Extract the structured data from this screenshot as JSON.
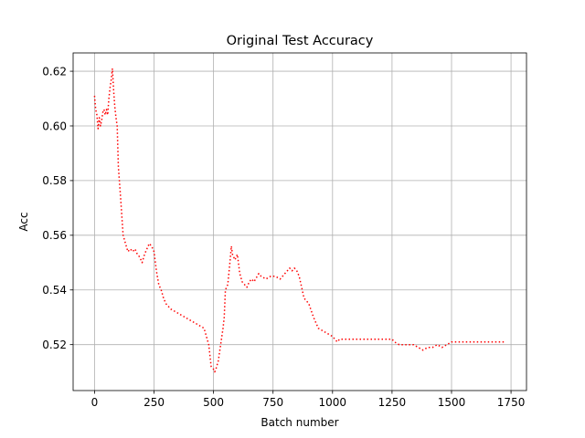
{
  "chart_data": {
    "type": "line",
    "title": "Original Test Accuracy",
    "xlabel": "Batch number",
    "ylabel": "Acc",
    "xlim": [
      -90,
      1815
    ],
    "ylim": [
      0.5032,
      0.6267
    ],
    "x_ticks": [
      0,
      250,
      500,
      750,
      1000,
      1250,
      1500,
      1750
    ],
    "x_tick_labels": [
      "0",
      "250",
      "500",
      "750",
      "1000",
      "1250",
      "1500",
      "1750"
    ],
    "y_ticks": [
      0.52,
      0.54,
      0.56,
      0.58,
      0.6,
      0.62
    ],
    "y_tick_labels": [
      "0.52",
      "0.54",
      "0.56",
      "0.58",
      "0.60",
      "0.62"
    ],
    "grid": true,
    "line_style": "dotted",
    "series": [
      {
        "color": "#ff0000",
        "x": [
          0,
          5,
          10,
          15,
          20,
          25,
          30,
          35,
          40,
          45,
          50,
          55,
          60,
          65,
          70,
          75,
          80,
          85,
          90,
          95,
          100,
          110,
          120,
          130,
          140,
          150,
          160,
          170,
          180,
          190,
          200,
          210,
          220,
          230,
          240,
          250,
          260,
          270,
          280,
          290,
          300,
          320,
          340,
          360,
          380,
          400,
          420,
          440,
          460,
          470,
          480,
          490,
          500,
          505,
          510,
          520,
          530,
          540,
          545,
          550,
          560,
          570,
          575,
          580,
          590,
          600,
          610,
          620,
          630,
          640,
          650,
          660,
          670,
          690,
          700,
          720,
          740,
          760,
          780,
          800,
          820,
          830,
          840,
          850,
          860,
          870,
          880,
          900,
          920,
          940,
          960,
          980,
          1000,
          1010,
          1020,
          1030,
          1040,
          1050,
          1100,
          1150,
          1200,
          1250,
          1260,
          1280,
          1300,
          1320,
          1340,
          1360,
          1380,
          1400,
          1420,
          1440,
          1460,
          1480,
          1500,
          1550,
          1600,
          1650,
          1700,
          1725
        ],
        "y": [
          0.611,
          0.606,
          0.604,
          0.599,
          0.603,
          0.6,
          0.602,
          0.605,
          0.606,
          0.604,
          0.606,
          0.604,
          0.61,
          0.614,
          0.617,
          0.621,
          0.613,
          0.607,
          0.603,
          0.6,
          0.585,
          0.573,
          0.56,
          0.557,
          0.554,
          0.555,
          0.554,
          0.555,
          0.553,
          0.552,
          0.55,
          0.553,
          0.555,
          0.557,
          0.556,
          0.554,
          0.547,
          0.542,
          0.54,
          0.537,
          0.535,
          0.533,
          0.532,
          0.531,
          0.53,
          0.529,
          0.528,
          0.527,
          0.526,
          0.523,
          0.52,
          0.512,
          0.511,
          0.51,
          0.511,
          0.514,
          0.52,
          0.526,
          0.53,
          0.54,
          0.542,
          0.551,
          0.556,
          0.553,
          0.551,
          0.553,
          0.546,
          0.543,
          0.542,
          0.541,
          0.543,
          0.544,
          0.543,
          0.546,
          0.545,
          0.544,
          0.545,
          0.545,
          0.544,
          0.546,
          0.548,
          0.547,
          0.548,
          0.547,
          0.545,
          0.541,
          0.537,
          0.535,
          0.53,
          0.526,
          0.525,
          0.524,
          0.523,
          0.522,
          0.521,
          0.522,
          0.522,
          0.522,
          0.522,
          0.522,
          0.522,
          0.522,
          0.521,
          0.52,
          0.52,
          0.52,
          0.52,
          0.519,
          0.518,
          0.519,
          0.519,
          0.52,
          0.519,
          0.52,
          0.521,
          0.521,
          0.521,
          0.521,
          0.521,
          0.521
        ]
      }
    ]
  }
}
